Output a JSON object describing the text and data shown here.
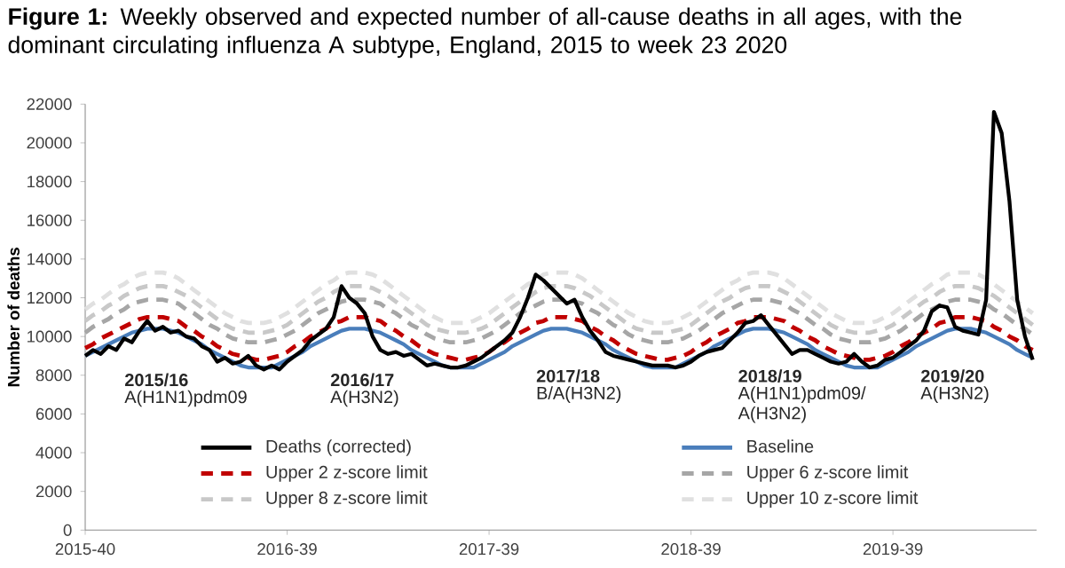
{
  "chart_data": {
    "type": "line",
    "title": "**Figure 1:** Weekly observed and expected number of all-cause deaths in all ages, with the dominant circulating influenza A subtype, England, 2015 to week 23 2020",
    "ylabel": "Number of deaths",
    "categories": [
      "2015-40",
      null,
      null,
      null,
      null,
      null,
      null,
      null,
      null,
      null,
      null,
      null,
      null,
      null,
      null,
      null,
      null,
      null,
      null,
      null,
      null,
      null,
      null,
      null,
      null,
      null,
      "2016-39",
      null,
      null,
      null,
      null,
      null,
      null,
      null,
      null,
      null,
      null,
      null,
      null,
      null,
      null,
      null,
      null,
      null,
      null,
      null,
      null,
      null,
      null,
      null,
      null,
      null,
      "2017-39",
      null,
      null,
      null,
      null,
      null,
      null,
      null,
      null,
      null,
      null,
      null,
      null,
      null,
      null,
      null,
      null,
      null,
      null,
      null,
      null,
      null,
      null,
      null,
      null,
      null,
      "2018-39",
      null,
      null,
      null,
      null,
      null,
      null,
      null,
      null,
      null,
      null,
      null,
      null,
      null,
      null,
      null,
      null,
      null,
      null,
      null,
      null,
      null,
      null,
      null,
      null,
      null,
      "2019-39",
      null,
      null,
      null,
      null,
      null,
      null,
      null,
      null,
      null,
      null,
      null,
      null,
      null,
      null,
      null,
      null,
      null,
      null
    ],
    "ylim": [
      0,
      22000
    ],
    "yticks": [
      0,
      2000,
      4000,
      6000,
      8000,
      10000,
      12000,
      14000,
      16000,
      18000,
      20000,
      22000
    ],
    "legend": "bottom",
    "marker": "none",
    "series": [
      {
        "name": "Deaths (corrected)",
        "color": "#000000",
        "line_style": "solid",
        "values": [
          9000,
          9300,
          9100,
          9500,
          9300,
          9900,
          9700,
          10300,
          10800,
          10300,
          10500,
          10200,
          10300,
          10000,
          9900,
          9500,
          9300,
          8700,
          8900,
          8600,
          8700,
          9000,
          8500,
          8300,
          8500,
          8300,
          8700,
          9000,
          9300,
          9800,
          10100,
          10400,
          11000,
          12600,
          12000,
          11700,
          11200,
          10000,
          9300,
          9100,
          9200,
          9000,
          9100,
          8800,
          8500,
          8600,
          8500,
          8400,
          8400,
          8500,
          8700,
          8900,
          9200,
          9500,
          9800,
          10200,
          11000,
          12000,
          13200,
          12900,
          12500,
          12100,
          11700,
          11900,
          11000,
          10300,
          9800,
          9200,
          9000,
          8900,
          8800,
          8700,
          8600,
          8500,
          8500,
          8500,
          8400,
          8500,
          8700,
          9000,
          9200,
          9300,
          9400,
          9800,
          10200,
          10700,
          10800,
          11100,
          10600,
          10100,
          9600,
          9100,
          9300,
          9300,
          9100,
          8900,
          8700,
          8600,
          8700,
          9100,
          8700,
          8400,
          8500,
          8800,
          8900,
          9200,
          9500,
          9800,
          10300,
          11300,
          11600,
          11500,
          10500,
          10300,
          10200,
          10100,
          11900,
          21600,
          20500,
          17000,
          11900,
          10000,
          8800
        ]
      },
      {
        "name": "Baseline",
        "color": "#4a7ebb",
        "line_style": "solid",
        "values": [
          9000,
          9200,
          9400,
          9600,
          9800,
          10000,
          10200,
          10300,
          10400,
          10400,
          10400,
          10300,
          10200,
          10000,
          9800,
          9600,
          9300,
          9100,
          8900,
          8700,
          8500,
          8400,
          8400,
          8400,
          8400,
          8600,
          8800,
          9000,
          9200,
          9500,
          9700,
          9900,
          10100,
          10300,
          10400,
          10400,
          10400,
          10300,
          10200,
          10000,
          9800,
          9600,
          9300,
          9100,
          8900,
          8700,
          8500,
          8400,
          8400,
          8400,
          8400,
          8600,
          8800,
          9000,
          9200,
          9500,
          9700,
          9900,
          10100,
          10300,
          10400,
          10400,
          10400,
          10300,
          10200,
          10000,
          9800,
          9600,
          9300,
          9100,
          8900,
          8700,
          8500,
          8400,
          8400,
          8400,
          8400,
          8600,
          8800,
          9000,
          9200,
          9500,
          9700,
          9900,
          10100,
          10300,
          10400,
          10400,
          10400,
          10300,
          10200,
          10000,
          9800,
          9600,
          9300,
          9100,
          8900,
          8700,
          8500,
          8400,
          8400,
          8400,
          8400,
          8600,
          8800,
          9000,
          9200,
          9500,
          9700,
          9900,
          10100,
          10300,
          10400,
          10400,
          10400,
          10300,
          10200,
          10000,
          9800,
          9600,
          9300,
          9100,
          8900
        ]
      },
      {
        "name": "Upper 2 z-score limit",
        "color": "#c00000",
        "line_style": "dashed",
        "values": [
          9400,
          9600,
          9900,
          10100,
          10300,
          10500,
          10700,
          10900,
          11000,
          11000,
          11000,
          10900,
          10800,
          10500,
          10300,
          10000,
          9800,
          9500,
          9300,
          9100,
          9000,
          8900,
          8800,
          8800,
          8900,
          9000,
          9200,
          9500,
          9700,
          10000,
          10200,
          10400,
          10700,
          10800,
          11000,
          11000,
          11000,
          10900,
          10800,
          10500,
          10300,
          10000,
          9800,
          9500,
          9300,
          9100,
          9000,
          8900,
          8800,
          8800,
          8900,
          9000,
          9200,
          9500,
          9700,
          10000,
          10200,
          10400,
          10700,
          10800,
          11000,
          11000,
          11000,
          10900,
          10800,
          10500,
          10300,
          10000,
          9800,
          9500,
          9300,
          9100,
          9000,
          8900,
          8800,
          8800,
          8900,
          9000,
          9200,
          9500,
          9700,
          10000,
          10200,
          10400,
          10700,
          10800,
          11000,
          11000,
          11000,
          10900,
          10800,
          10500,
          10300,
          10000,
          9800,
          9500,
          9300,
          9100,
          9000,
          8900,
          8800,
          8800,
          8900,
          9000,
          9200,
          9500,
          9700,
          10000,
          10200,
          10400,
          10700,
          10800,
          11000,
          11000,
          11000,
          10900,
          10800,
          10500,
          10300,
          10000,
          9800,
          9500,
          9300
        ]
      },
      {
        "name": "Upper 6 z-score limit",
        "color": "#a6a6a6",
        "line_style": "dashed",
        "values": [
          10200,
          10500,
          10700,
          10900,
          11200,
          11400,
          11700,
          11800,
          11900,
          11900,
          11900,
          11800,
          11700,
          11400,
          11200,
          10900,
          10600,
          10400,
          10100,
          9900,
          9800,
          9700,
          9700,
          9700,
          9800,
          9900,
          10100,
          10300,
          10600,
          10900,
          11200,
          11400,
          11600,
          11800,
          11900,
          11900,
          11900,
          11800,
          11700,
          11400,
          11200,
          10900,
          10600,
          10400,
          10100,
          9900,
          9800,
          9700,
          9700,
          9700,
          9800,
          9900,
          10100,
          10300,
          10600,
          10900,
          11200,
          11400,
          11600,
          11800,
          11900,
          11900,
          11900,
          11800,
          11700,
          11400,
          11200,
          10900,
          10600,
          10400,
          10100,
          9900,
          9800,
          9700,
          9700,
          9700,
          9800,
          9900,
          10100,
          10300,
          10600,
          10900,
          11200,
          11400,
          11600,
          11800,
          11900,
          11900,
          11900,
          11800,
          11700,
          11400,
          11200,
          10900,
          10600,
          10400,
          10100,
          9900,
          9800,
          9700,
          9700,
          9700,
          9800,
          9900,
          10100,
          10300,
          10600,
          10900,
          11200,
          11400,
          11600,
          11800,
          11900,
          11900,
          11900,
          11800,
          11700,
          11400,
          11200,
          10900,
          10600,
          10400,
          10100
        ]
      },
      {
        "name": "Upper 8 z-score limit",
        "color": "#c8c8c8",
        "line_style": "dashed",
        "values": [
          10800,
          11100,
          11300,
          11600,
          11800,
          12100,
          12300,
          12500,
          12600,
          12600,
          12600,
          12500,
          12300,
          12100,
          11800,
          11500,
          11200,
          10900,
          10600,
          10400,
          10300,
          10200,
          10200,
          10200,
          10300,
          10400,
          10600,
          10900,
          11200,
          11500,
          11800,
          12000,
          12300,
          12500,
          12600,
          12600,
          12600,
          12500,
          12300,
          12100,
          11800,
          11500,
          11200,
          10900,
          10600,
          10400,
          10300,
          10200,
          10200,
          10200,
          10300,
          10400,
          10600,
          10900,
          11200,
          11500,
          11800,
          12000,
          12300,
          12500,
          12600,
          12600,
          12600,
          12500,
          12300,
          12100,
          11800,
          11500,
          11200,
          10900,
          10600,
          10400,
          10300,
          10200,
          10200,
          10200,
          10300,
          10400,
          10600,
          10900,
          11200,
          11500,
          11800,
          12000,
          12300,
          12500,
          12600,
          12600,
          12600,
          12500,
          12300,
          12100,
          11800,
          11500,
          11200,
          10900,
          10600,
          10400,
          10300,
          10200,
          10200,
          10200,
          10300,
          10400,
          10600,
          10900,
          11200,
          11500,
          11800,
          12000,
          12300,
          12500,
          12600,
          12600,
          12600,
          12500,
          12300,
          12100,
          11800,
          11500,
          11200,
          10900,
          10600
        ]
      },
      {
        "name": "Upper 10 z-score limit",
        "color": "#e0e0e0",
        "line_style": "dashed",
        "values": [
          11400,
          11700,
          11900,
          12200,
          12500,
          12700,
          13000,
          13200,
          13300,
          13300,
          13300,
          13200,
          13000,
          12700,
          12400,
          12100,
          11800,
          11500,
          11200,
          11000,
          10800,
          10700,
          10700,
          10700,
          10800,
          11000,
          11200,
          11500,
          11800,
          12100,
          12400,
          12700,
          12900,
          13200,
          13300,
          13300,
          13300,
          13200,
          13000,
          12700,
          12400,
          12100,
          11800,
          11500,
          11200,
          11000,
          10800,
          10700,
          10700,
          10700,
          10800,
          11000,
          11200,
          11500,
          11800,
          12100,
          12400,
          12700,
          12900,
          13200,
          13300,
          13300,
          13300,
          13200,
          13000,
          12700,
          12400,
          12100,
          11800,
          11500,
          11200,
          11000,
          10800,
          10700,
          10700,
          10700,
          10800,
          11000,
          11200,
          11500,
          11800,
          12100,
          12400,
          12700,
          12900,
          13200,
          13300,
          13300,
          13300,
          13200,
          13000,
          12700,
          12400,
          12100,
          11800,
          11500,
          11200,
          11000,
          10800,
          10700,
          10700,
          10700,
          10800,
          11000,
          11200,
          11500,
          11800,
          12100,
          12400,
          12700,
          12900,
          13200,
          13300,
          13300,
          13300,
          13200,
          13000,
          12700,
          12400,
          12100,
          11800,
          11500,
          11200
        ]
      }
    ],
    "annotations": [
      "2015/16",
      "A(H1N1)pdm09",
      "2016/17",
      "A(H3N2)",
      "2017/18",
      "B/A(H3N2)",
      "2018/19",
      "A(H1N1)pdm09/ A(H3N2)",
      "2019/20",
      "A(H3N2)"
    ]
  }
}
